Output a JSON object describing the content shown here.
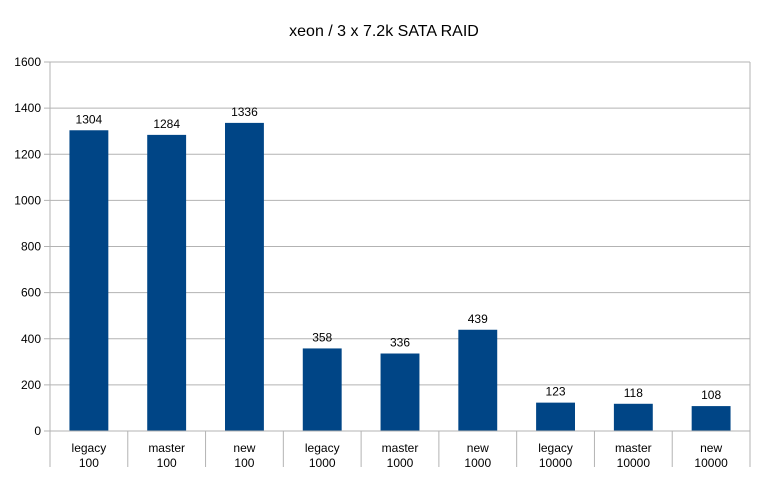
{
  "chart_data": {
    "type": "bar",
    "title": "xeon / 3 x 7.2k SATA RAID",
    "xlabel": "",
    "ylabel": "",
    "ylim": [
      0,
      1600
    ],
    "yticks": [
      0,
      200,
      400,
      600,
      800,
      1000,
      1200,
      1400,
      1600
    ],
    "grid": true,
    "legend": "none",
    "categories": [
      [
        "legacy",
        "100"
      ],
      [
        "master",
        "100"
      ],
      [
        "new",
        "100"
      ],
      [
        "legacy",
        "1000"
      ],
      [
        "master",
        "1000"
      ],
      [
        "new",
        "1000"
      ],
      [
        "legacy",
        "10000"
      ],
      [
        "master",
        "10000"
      ],
      [
        "new",
        "10000"
      ]
    ],
    "values": [
      1304,
      1284,
      1336,
      358,
      336,
      439,
      123,
      118,
      108
    ],
    "bar_color": "#004586"
  }
}
